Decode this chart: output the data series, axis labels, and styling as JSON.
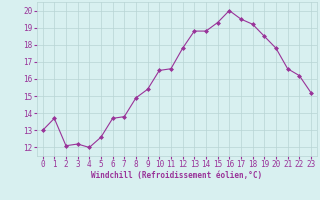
{
  "x": [
    0,
    1,
    2,
    3,
    4,
    5,
    6,
    7,
    8,
    9,
    10,
    11,
    12,
    13,
    14,
    15,
    16,
    17,
    18,
    19,
    20,
    21,
    22,
    23
  ],
  "y": [
    13.0,
    13.7,
    12.1,
    12.2,
    12.0,
    12.6,
    13.7,
    13.8,
    14.9,
    15.4,
    16.5,
    16.6,
    17.8,
    18.8,
    18.8,
    19.3,
    20.0,
    19.5,
    19.2,
    18.5,
    17.8,
    16.6,
    16.2,
    15.2
  ],
  "line_color": "#993399",
  "marker": "D",
  "marker_size": 2.0,
  "background_color": "#d8f0f0",
  "grid_color": "#b8d4d4",
  "xlabel": "Windchill (Refroidissement éolien,°C)",
  "xlabel_color": "#993399",
  "tick_color": "#993399",
  "label_color": "#993399",
  "ylim": [
    11.5,
    20.5
  ],
  "xlim": [
    -0.5,
    23.5
  ],
  "yticks": [
    12,
    13,
    14,
    15,
    16,
    17,
    18,
    19,
    20
  ],
  "xticks": [
    0,
    1,
    2,
    3,
    4,
    5,
    6,
    7,
    8,
    9,
    10,
    11,
    12,
    13,
    14,
    15,
    16,
    17,
    18,
    19,
    20,
    21,
    22,
    23
  ],
  "tick_fontsize": 5.5,
  "xlabel_fontsize": 5.5,
  "line_width": 0.8
}
